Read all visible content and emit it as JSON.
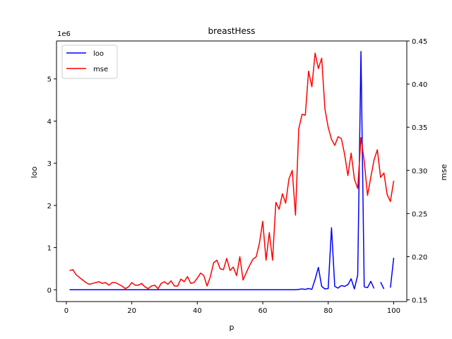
{
  "chart_data": {
    "type": "line",
    "title": "breastHess",
    "xlabel": "p",
    "xlim": [
      -3,
      104
    ],
    "x_ticks": [
      0,
      20,
      40,
      60,
      80,
      100
    ],
    "left_axis": {
      "label": "loo",
      "offset_text": "1e6",
      "ylim": [
        -0.28,
        5.9
      ],
      "ticks": [
        0,
        1,
        2,
        3,
        4,
        5
      ]
    },
    "right_axis": {
      "label": "mse",
      "ylim": [
        0.148,
        0.45
      ],
      "ticks": [
        0.15,
        0.2,
        0.25,
        0.3,
        0.35,
        0.4,
        0.45
      ],
      "tick_labels": [
        "0.15",
        "0.20",
        "0.25",
        "0.30",
        "0.35",
        "0.40",
        "0.45"
      ]
    },
    "legend_position": "upper-left",
    "series": [
      {
        "name": "loo",
        "axis": "left",
        "color": "#0000ff",
        "segments": [
          {
            "x": [
              1,
              2,
              3,
              4,
              5,
              6,
              7,
              8,
              9,
              10,
              11,
              12,
              13,
              14,
              15,
              16,
              17,
              18,
              19,
              20,
              21,
              22,
              23,
              24,
              25,
              26,
              27,
              28,
              29,
              30,
              31,
              32,
              33,
              34,
              35,
              36,
              37,
              38,
              39,
              40,
              41,
              42,
              43,
              44,
              45,
              46,
              47,
              48,
              49,
              50,
              51,
              52,
              53,
              54,
              55,
              56,
              57,
              58,
              59,
              60,
              61,
              62,
              63,
              64,
              65,
              66,
              67,
              68,
              69,
              70,
              71,
              72,
              73,
              74,
              75,
              76,
              77,
              78,
              79,
              80,
              81,
              82,
              83,
              84,
              85,
              86,
              87,
              88,
              89,
              90,
              91,
              92,
              93,
              94
            ],
            "y": [
              0,
              0,
              0,
              0,
              0,
              0,
              0,
              0,
              0,
              0,
              0,
              0,
              0,
              0,
              0,
              0,
              0,
              0,
              0,
              0,
              0,
              0,
              0,
              0,
              0,
              0,
              0,
              0,
              0,
              0,
              0,
              0,
              0,
              0,
              0,
              0,
              0,
              0,
              0,
              0,
              0,
              0,
              0,
              0,
              0,
              0,
              0,
              0,
              0,
              0,
              0,
              0,
              0,
              0,
              0,
              0,
              0,
              0,
              0,
              0,
              0,
              0,
              0,
              0,
              0,
              0,
              0,
              0,
              0,
              0,
              0.01,
              0.02,
              0.01,
              0.03,
              0.01,
              0.25,
              0.53,
              0.08,
              0.02,
              0.03,
              1.47,
              0.08,
              0.04,
              0.1,
              0.08,
              0.12,
              0.26,
              0.02,
              0.35,
              5.65,
              0.07,
              0.05,
              0.2,
              0.03
            ]
          },
          {
            "x": [
              96,
              97
            ],
            "y": [
              0.18,
              0.02
            ]
          },
          {
            "x": [
              99,
              100
            ],
            "y": [
              0.05,
              0.76
            ]
          }
        ]
      },
      {
        "name": "mse",
        "axis": "right",
        "color": "#ff0000",
        "segments": [
          {
            "x": [
              1,
              2,
              3,
              4,
              5,
              6,
              7,
              8,
              9,
              10,
              11,
              12,
              13,
              14,
              15,
              16,
              17,
              18,
              19,
              20,
              21,
              22,
              23,
              24,
              25,
              26,
              27,
              28,
              29,
              30,
              31,
              32,
              33,
              34,
              35,
              36,
              37,
              38,
              39,
              40,
              41,
              42,
              43,
              44,
              45,
              46,
              47,
              48,
              49,
              50,
              51,
              52,
              53,
              54,
              55,
              56,
              57,
              58,
              59,
              60,
              61,
              62,
              63,
              64,
              65,
              66,
              67,
              68,
              69,
              70,
              71,
              72,
              73,
              74,
              75,
              76,
              77,
              78,
              79,
              80,
              81,
              82,
              83,
              84,
              85,
              86,
              87,
              88,
              89,
              90,
              91,
              92,
              93,
              94,
              95,
              96,
              97,
              98,
              99,
              100
            ],
            "y": [
              0.184,
              0.185,
              0.179,
              0.176,
              0.173,
              0.17,
              0.168,
              0.169,
              0.17,
              0.171,
              0.169,
              0.17,
              0.167,
              0.17,
              0.17,
              0.168,
              0.166,
              0.163,
              0.165,
              0.17,
              0.167,
              0.167,
              0.169,
              0.165,
              0.163,
              0.166,
              0.167,
              0.163,
              0.169,
              0.171,
              0.168,
              0.172,
              0.166,
              0.166,
              0.174,
              0.171,
              0.177,
              0.169,
              0.17,
              0.175,
              0.181,
              0.178,
              0.166,
              0.177,
              0.193,
              0.196,
              0.186,
              0.185,
              0.198,
              0.184,
              0.188,
              0.178,
              0.2,
              0.173,
              0.182,
              0.19,
              0.197,
              0.2,
              0.216,
              0.241,
              0.196,
              0.228,
              0.196,
              0.263,
              0.255,
              0.273,
              0.262,
              0.29,
              0.3,
              0.248,
              0.348,
              0.365,
              0.364,
              0.415,
              0.397,
              0.436,
              0.418,
              0.43,
              0.371,
              0.35,
              0.336,
              0.329,
              0.339,
              0.337,
              0.319,
              0.294,
              0.32,
              0.29,
              0.279,
              0.338,
              0.311,
              0.271,
              0.292,
              0.312,
              0.324,
              0.292,
              0.297,
              0.272,
              0.264,
              0.288
            ]
          }
        ]
      }
    ]
  }
}
